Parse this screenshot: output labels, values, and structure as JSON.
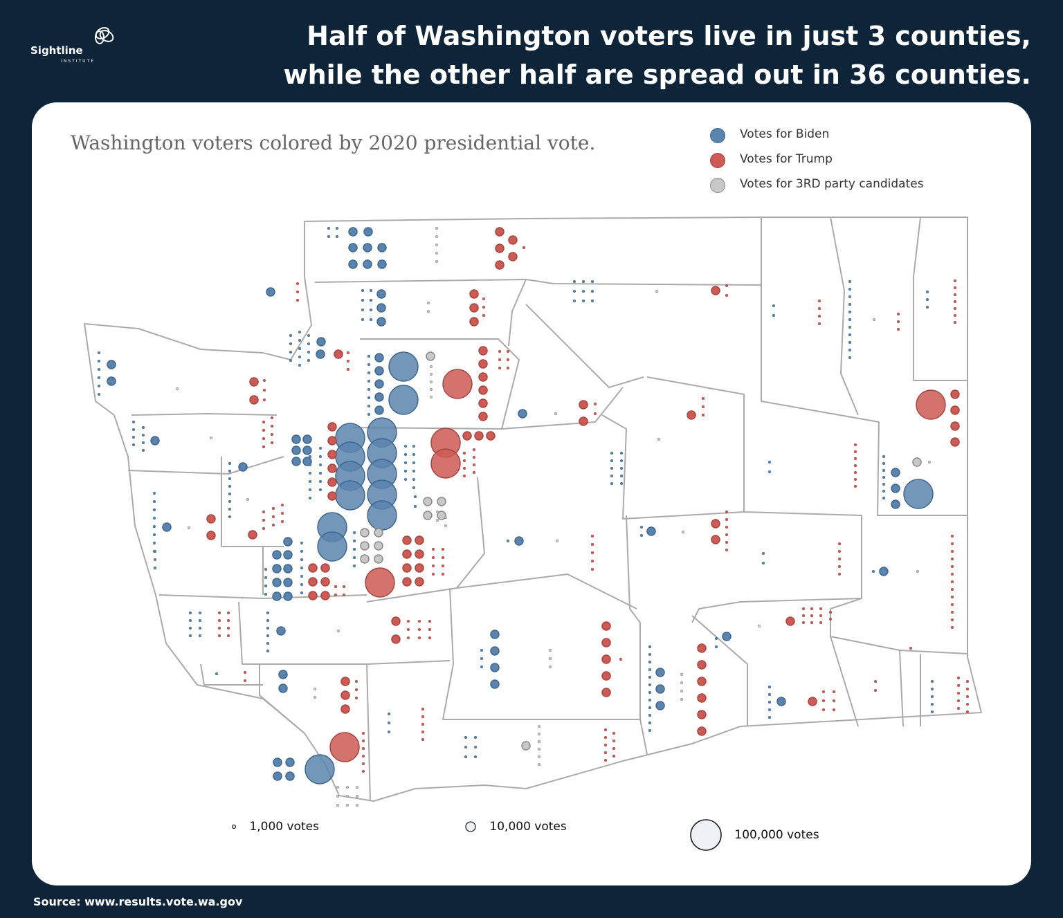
{
  "logo": {
    "name": "Sightline",
    "sub": "INSTITUTE"
  },
  "headline": {
    "line1": "Half of Washington voters live in just 3 counties,",
    "line2": "while the other half are spread out in 36 counties."
  },
  "subtitle": "Washington voters colored by 2020 presidential vote.",
  "legend": [
    {
      "label": "Votes for Biden",
      "color": "#5b84ad"
    },
    {
      "label": "Votes for Trump",
      "color": "#cc5a55"
    },
    {
      "label": "Votes for 3RD party candidates",
      "color": "#c8c8c8"
    }
  ],
  "size_legend": [
    {
      "label": "1,000 votes"
    },
    {
      "label": "10,000 votes"
    },
    {
      "label": "100,000 votes"
    }
  ],
  "source": "Source: www.results.vote.wa.gov",
  "colors": {
    "background": "#0e2439",
    "biden": "#5b84ad",
    "trump": "#cc5a55",
    "third": "#c8c8c8",
    "county_border": "#aaaaaa"
  }
}
